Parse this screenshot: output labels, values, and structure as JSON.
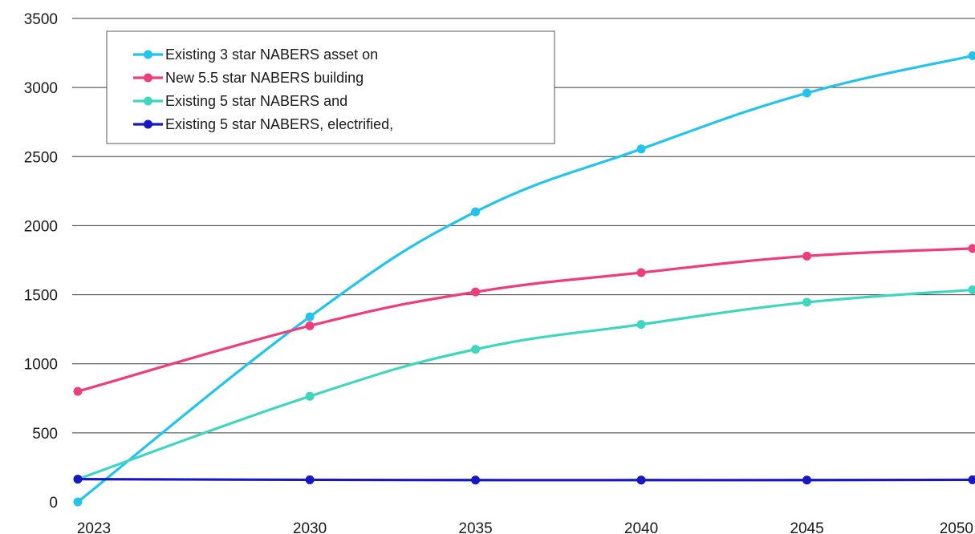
{
  "chart_data": {
    "type": "line",
    "title": "",
    "xlabel": "",
    "ylabel": "",
    "x": [
      2023,
      2030,
      2035,
      2040,
      2045,
      2050
    ],
    "xlim": [
      2023,
      2050
    ],
    "ylim": [
      0,
      3500
    ],
    "y_ticks": [
      0,
      500,
      1000,
      1500,
      2000,
      2500,
      3000,
      3500
    ],
    "grid": "horizontal",
    "smooth": true,
    "legend_position": "top-left",
    "series": [
      {
        "name": "Existing 3 star NABERS asset on",
        "color": "#22c4ee",
        "values": [
          0,
          1340,
          2100,
          2555,
          2960,
          3230
        ]
      },
      {
        "name": "New 5.5 star NABERS building",
        "color": "#ee3c7d",
        "values": [
          800,
          1275,
          1520,
          1660,
          1780,
          1835
        ]
      },
      {
        "name": "Existing 5 star NABERS and",
        "color": "#3fd6c0",
        "values": [
          165,
          765,
          1105,
          1285,
          1445,
          1535
        ]
      },
      {
        "name": "Existing 5 star NABERS, electrified,",
        "color": "#1717c4",
        "values": [
          165,
          160,
          158,
          158,
          158,
          160
        ]
      }
    ]
  }
}
